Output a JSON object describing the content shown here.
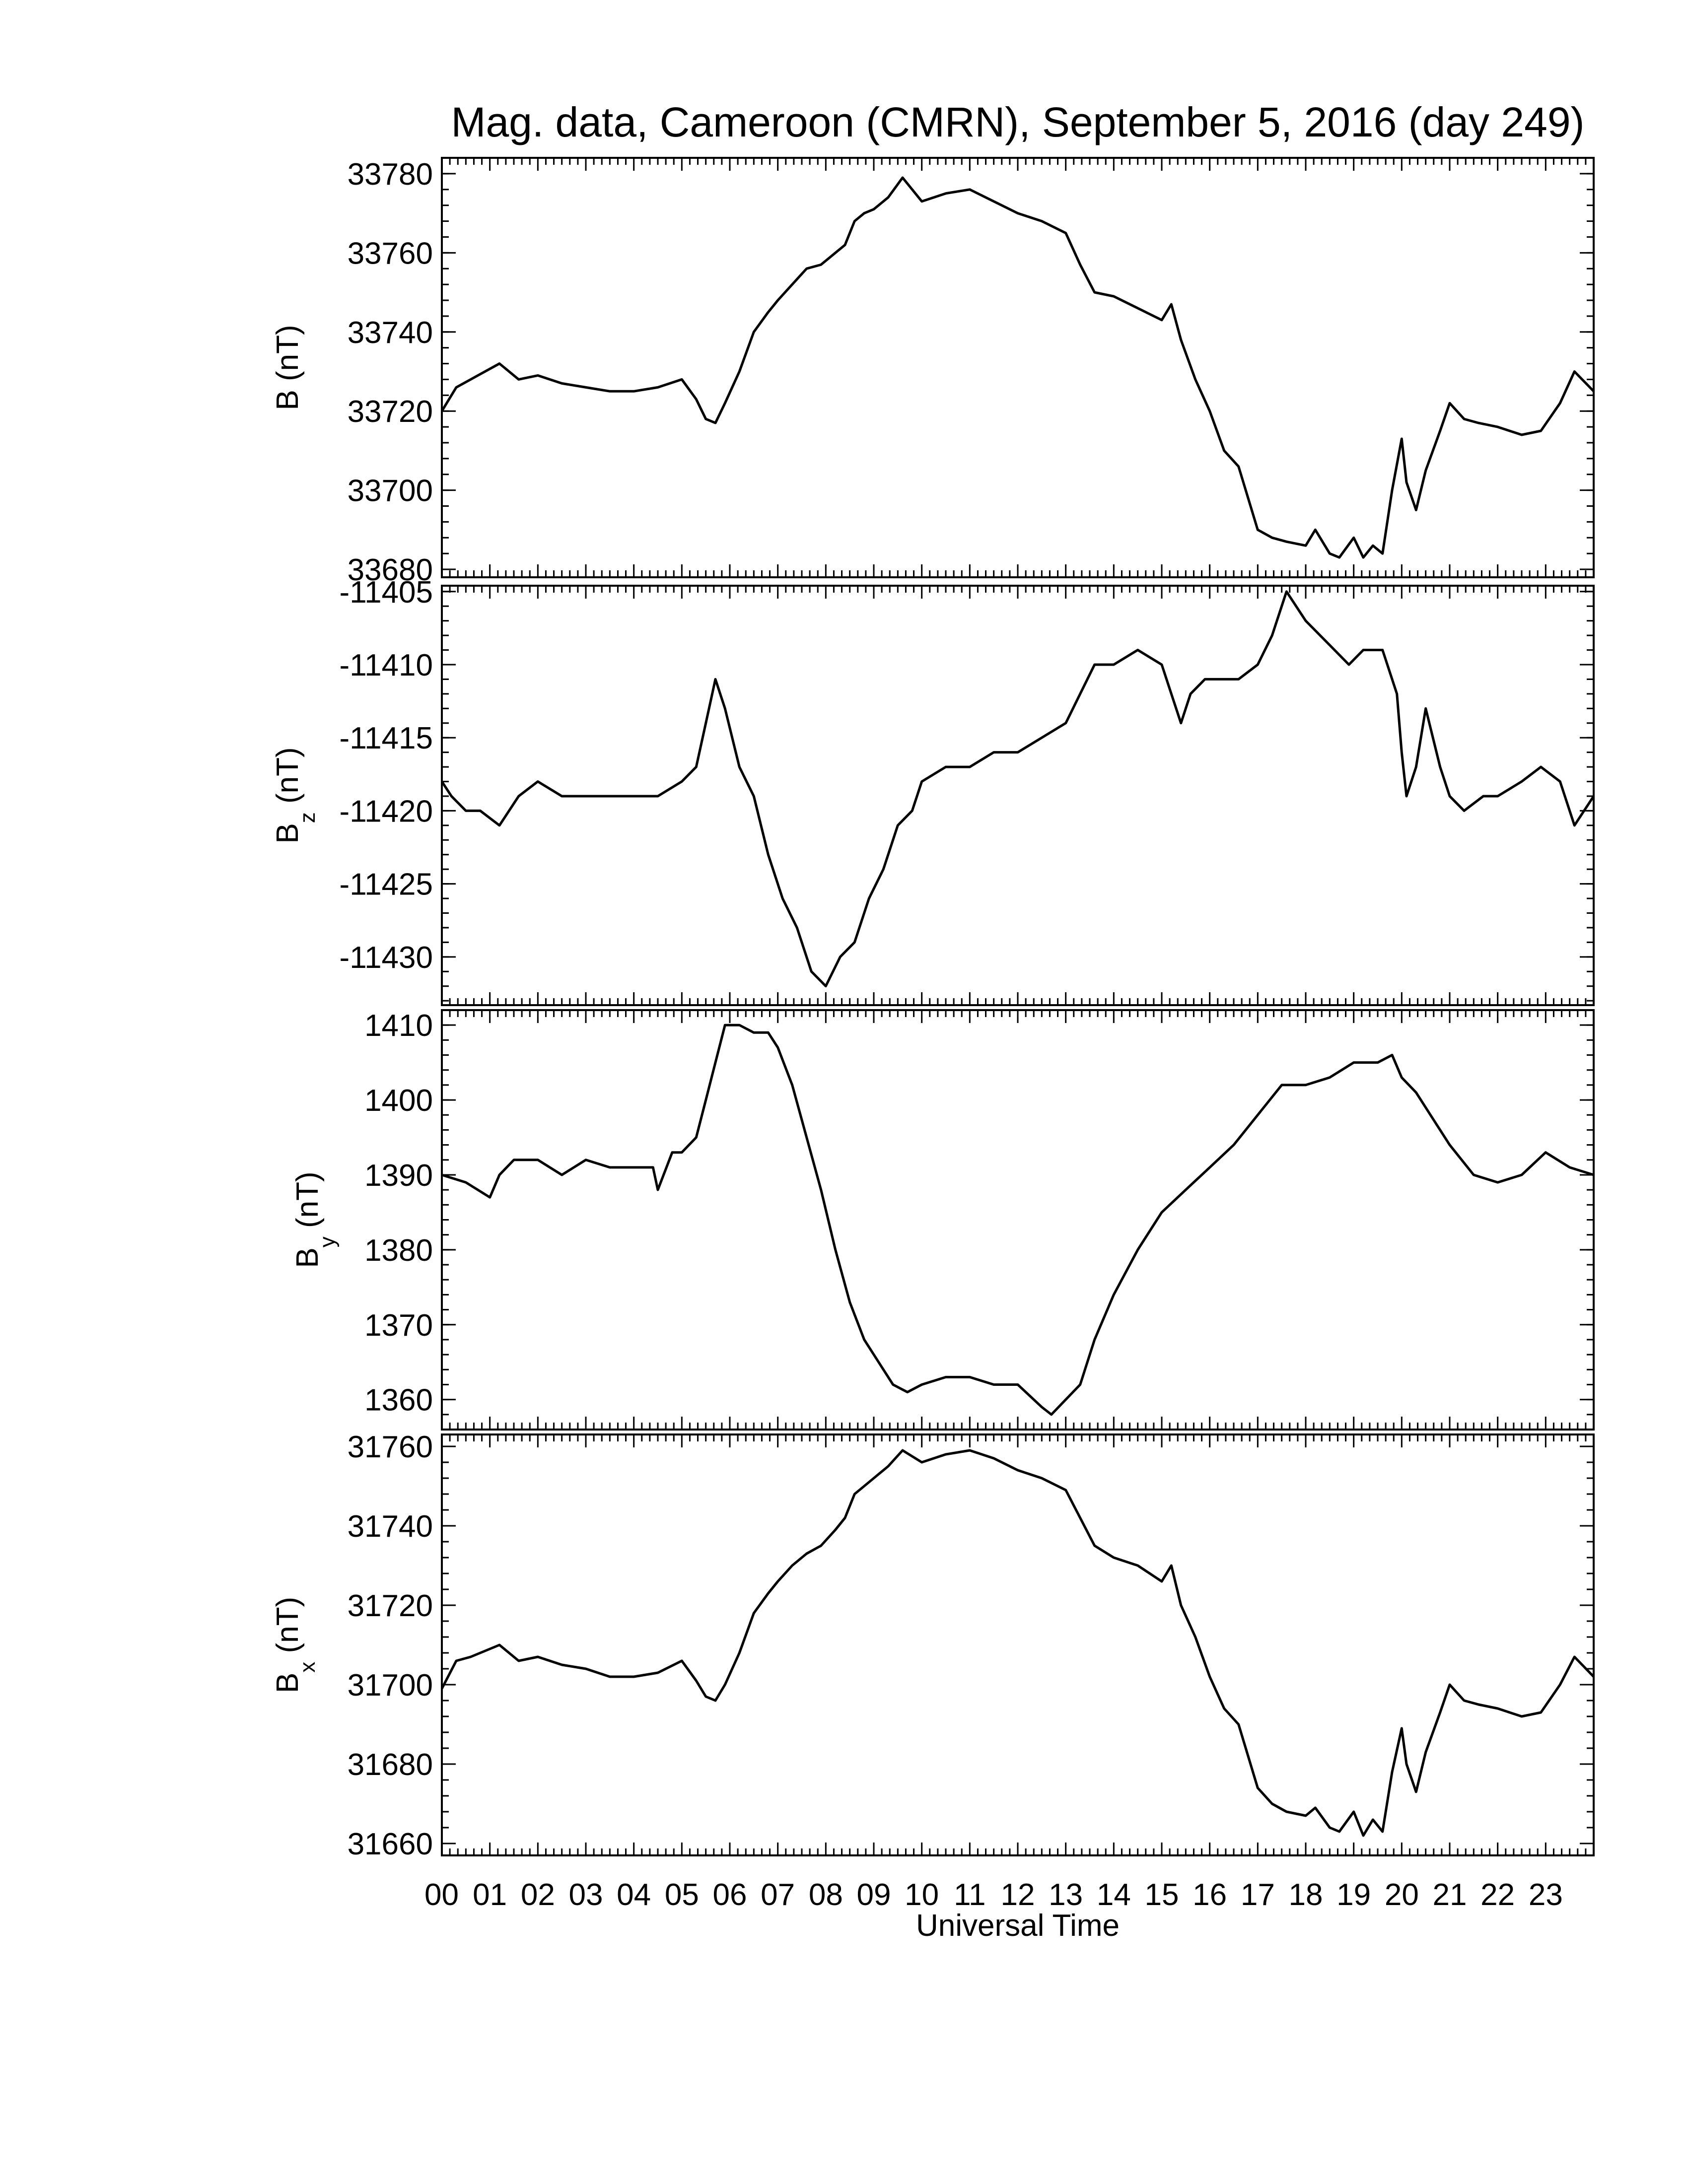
{
  "chart_data": {
    "title": "Mag. data, Cameroon (CMRN), September 5, 2016 (day 249)",
    "xlabel": "Universal Time",
    "x_tick_labels": [
      "00",
      "01",
      "02",
      "03",
      "04",
      "05",
      "06",
      "07",
      "08",
      "09",
      "10",
      "11",
      "12",
      "13",
      "14",
      "15",
      "16",
      "17",
      "18",
      "19",
      "20",
      "21",
      "22",
      "23"
    ],
    "xlim": [
      0,
      24
    ],
    "panels": [
      {
        "type": "line",
        "ylabel_main": "B",
        "ylabel_sub": "",
        "ylabel_unit": "(nT)",
        "ylim": [
          33678,
          33784
        ],
        "y_ticks": [
          33680,
          33700,
          33720,
          33740,
          33760,
          33780
        ],
        "series": [
          {
            "x": [
              0,
              0.3,
              0.6,
              1.2,
              1.6,
              2.0,
              2.5,
              3.0,
              3.5,
              4.0,
              4.5,
              5.0,
              5.3,
              5.5,
              5.7,
              5.9,
              6.2,
              6.5,
              6.8,
              7.0,
              7.3,
              7.6,
              7.9,
              8.2,
              8.4,
              8.6,
              8.8,
              9.0,
              9.3,
              9.6,
              10.0,
              10.5,
              11.0,
              11.5,
              12.0,
              12.5,
              13.0,
              13.3,
              13.6,
              14.0,
              14.5,
              15.0,
              15.2,
              15.4,
              15.7,
              16.0,
              16.3,
              16.6,
              17.0,
              17.3,
              17.6,
              18.0,
              18.2,
              18.5,
              18.7,
              19.0,
              19.2,
              19.4,
              19.6,
              19.8,
              20.0,
              20.1,
              20.3,
              20.5,
              20.8,
              21.0,
              21.3,
              21.6,
              22.0,
              22.5,
              22.9,
              23.3,
              23.6,
              24.0
            ],
            "y": [
              33720,
              33726,
              33728,
              33732,
              33728,
              33729,
              33727,
              33726,
              33725,
              33725,
              33726,
              33728,
              33723,
              33718,
              33717,
              33722,
              33730,
              33740,
              33745,
              33748,
              33752,
              33756,
              33757,
              33760,
              33762,
              33768,
              33770,
              33771,
              33774,
              33779,
              33773,
              33775,
              33776,
              33773,
              33770,
              33768,
              33765,
              33757,
              33750,
              33749,
              33746,
              33743,
              33747,
              33738,
              33728,
              33720,
              33710,
              33706,
              33690,
              33688,
              33687,
              33686,
              33690,
              33684,
              33683,
              33688,
              33683,
              33686,
              33684,
              33700,
              33713,
              33702,
              33695,
              33705,
              33715,
              33722,
              33718,
              33717,
              33716,
              33714,
              33715,
              33722,
              33730,
              33725
            ]
          }
        ]
      },
      {
        "type": "line",
        "ylabel_main": "B",
        "ylabel_sub": "z",
        "ylabel_unit": "(nT)",
        "ylim": [
          -11433.3,
          -11404.6
        ],
        "y_ticks": [
          -11405,
          -11410,
          -11415,
          -11420,
          -11425,
          -11430
        ],
        "series": [
          {
            "x": [
              0,
              0.2,
              0.5,
              0.8,
              1.2,
              1.6,
              2.0,
              2.5,
              3.0,
              3.5,
              4.0,
              4.5,
              5.0,
              5.3,
              5.5,
              5.7,
              5.9,
              6.2,
              6.5,
              6.8,
              7.1,
              7.4,
              7.7,
              8.0,
              8.3,
              8.6,
              8.9,
              9.2,
              9.5,
              9.8,
              10.0,
              10.5,
              11.0,
              11.5,
              12.0,
              12.5,
              13.0,
              13.3,
              13.6,
              14.0,
              14.5,
              15.0,
              15.2,
              15.4,
              15.6,
              15.9,
              16.2,
              16.6,
              17.0,
              17.3,
              17.6,
              18.0,
              18.3,
              18.6,
              18.9,
              19.2,
              19.6,
              19.9,
              20.0,
              20.1,
              20.3,
              20.5,
              20.8,
              21.0,
              21.3,
              21.7,
              22.0,
              22.5,
              22.9,
              23.3,
              23.6,
              24.0
            ],
            "y": [
              -11418,
              -11419,
              -11420,
              -11420,
              -11421,
              -11419,
              -11418,
              -11419,
              -11419,
              -11419,
              -11419,
              -11419,
              -11418,
              -11417,
              -11414,
              -11411,
              -11413,
              -11417,
              -11419,
              -11423,
              -11426,
              -11428,
              -11431,
              -11432,
              -11430,
              -11429,
              -11426,
              -11424,
              -11421,
              -11420,
              -11418,
              -11417,
              -11417,
              -11416,
              -11416,
              -11415,
              -11414,
              -11412,
              -11410,
              -11410,
              -11409,
              -11410,
              -11412,
              -11414,
              -11412,
              -11411,
              -11411,
              -11411,
              -11410,
              -11408,
              -11405,
              -11407,
              -11408,
              -11409,
              -11410,
              -11409,
              -11409,
              -11412,
              -11416,
              -11419,
              -11417,
              -11413,
              -11417,
              -11419,
              -11420,
              -11419,
              -11419,
              -11418,
              -11417,
              -11418,
              -11421,
              -11419
            ]
          }
        ]
      },
      {
        "type": "line",
        "ylabel_main": "B",
        "ylabel_sub": "y",
        "ylabel_unit": "(nT)",
        "ylim": [
          1356,
          1412
        ],
        "y_ticks": [
          1360,
          1370,
          1380,
          1390,
          1400,
          1410
        ],
        "series": [
          {
            "x": [
              0,
              0.5,
              1.0,
              1.2,
              1.5,
              2.0,
              2.5,
              3.0,
              3.5,
              4.0,
              4.4,
              4.5,
              4.8,
              5.0,
              5.3,
              5.5,
              5.7,
              5.9,
              6.2,
              6.5,
              6.8,
              7.0,
              7.3,
              7.6,
              7.9,
              8.2,
              8.5,
              8.8,
              9.1,
              9.4,
              9.7,
              10.0,
              10.5,
              11.0,
              11.5,
              12.0,
              12.5,
              12.7,
              13.0,
              13.3,
              13.6,
              14.0,
              14.5,
              15.0,
              15.5,
              16.0,
              16.5,
              17.0,
              17.5,
              18.0,
              18.5,
              19.0,
              19.5,
              19.8,
              20.0,
              20.3,
              20.6,
              21.0,
              21.5,
              22.0,
              22.5,
              23.0,
              23.5,
              24.0
            ],
            "y": [
              1390,
              1389,
              1387,
              1390,
              1392,
              1392,
              1390,
              1392,
              1391,
              1391,
              1391,
              1388,
              1393,
              1393,
              1395,
              1400,
              1405,
              1410,
              1410,
              1409,
              1409,
              1407,
              1402,
              1395,
              1388,
              1380,
              1373,
              1368,
              1365,
              1362,
              1361,
              1362,
              1363,
              1363,
              1362,
              1362,
              1359,
              1358,
              1360,
              1362,
              1368,
              1374,
              1380,
              1385,
              1388,
              1391,
              1394,
              1398,
              1402,
              1402,
              1403,
              1405,
              1405,
              1406,
              1403,
              1401,
              1398,
              1394,
              1390,
              1389,
              1390,
              1393,
              1391,
              1390
            ]
          }
        ]
      },
      {
        "type": "line",
        "ylabel_main": "B",
        "ylabel_sub": "x",
        "ylabel_unit": "(nT)",
        "ylim": [
          31657,
          31763
        ],
        "y_ticks": [
          31660,
          31680,
          31700,
          31720,
          31740,
          31760
        ],
        "series": [
          {
            "x": [
              0,
              0.3,
              0.6,
              1.2,
              1.6,
              2.0,
              2.5,
              3.0,
              3.5,
              4.0,
              4.5,
              5.0,
              5.3,
              5.5,
              5.7,
              5.9,
              6.2,
              6.5,
              6.8,
              7.0,
              7.3,
              7.6,
              7.9,
              8.2,
              8.4,
              8.6,
              8.8,
              9.0,
              9.3,
              9.6,
              10.0,
              10.5,
              11.0,
              11.5,
              12.0,
              12.5,
              13.0,
              13.3,
              13.6,
              14.0,
              14.5,
              15.0,
              15.2,
              15.4,
              15.7,
              16.0,
              16.3,
              16.6,
              17.0,
              17.3,
              17.6,
              18.0,
              18.2,
              18.5,
              18.7,
              19.0,
              19.2,
              19.4,
              19.6,
              19.8,
              20.0,
              20.1,
              20.3,
              20.5,
              20.8,
              21.0,
              21.3,
              21.6,
              22.0,
              22.5,
              22.9,
              23.3,
              23.6,
              24.0
            ],
            "y": [
              31699,
              31706,
              31707,
              31710,
              31706,
              31707,
              31705,
              31704,
              31702,
              31702,
              31703,
              31706,
              31701,
              31697,
              31696,
              31700,
              31708,
              31718,
              31723,
              31726,
              31730,
              31733,
              31735,
              31739,
              31742,
              31748,
              31750,
              31752,
              31755,
              31759,
              31756,
              31758,
              31759,
              31757,
              31754,
              31752,
              31749,
              31742,
              31735,
              31732,
              31730,
              31726,
              31730,
              31720,
              31712,
              31702,
              31694,
              31690,
              31674,
              31670,
              31668,
              31667,
              31669,
              31664,
              31663,
              31668,
              31662,
              31666,
              31663,
              31678,
              31689,
              31680,
              31673,
              31683,
              31693,
              31700,
              31696,
              31695,
              31694,
              31692,
              31693,
              31700,
              31707,
              31702
            ]
          }
        ]
      }
    ]
  }
}
